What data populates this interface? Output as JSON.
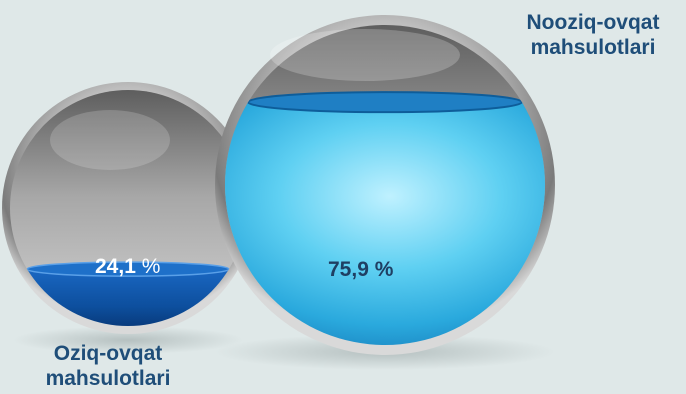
{
  "chart_data": {
    "type": "pie",
    "categories": [
      "Oziq-ovqat mahsulotlari",
      "Nooziq-ovqat mahsulotlari"
    ],
    "values": [
      24.1,
      75.9
    ],
    "value_labels": [
      "24,1",
      "75,9"
    ],
    "unit": "%",
    "title": "",
    "colors": [
      "#0d4f9e",
      "#3dbde6"
    ]
  },
  "labels": {
    "left_line1": "Oziq-ovqat",
    "left_line2": "mahsulotlari",
    "right_line1": "Nooziq-ovqat",
    "right_line2": "mahsulotlari"
  }
}
